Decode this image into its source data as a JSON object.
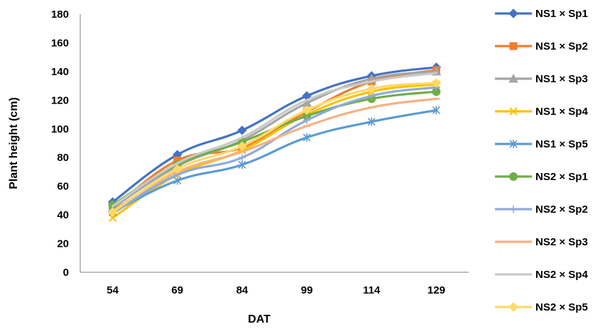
{
  "chart_data": {
    "type": "line",
    "title": "",
    "xlabel": "DAT",
    "ylabel": "Plant height (cm)",
    "categories": [
      "54",
      "69",
      "84",
      "99",
      "114",
      "129"
    ],
    "ylim": [
      0,
      180
    ],
    "yticks": [
      0,
      20,
      40,
      60,
      80,
      100,
      120,
      140,
      160,
      180
    ],
    "grid": false,
    "legend_position": "right",
    "series": [
      {
        "name": "NS1 × Sp1",
        "color": "#4472C4",
        "marker": "diamond",
        "values": [
          49,
          82,
          99,
          123,
          137,
          143
        ]
      },
      {
        "name": "NS1 × Sp2",
        "color": "#ED7D31",
        "marker": "square",
        "values": [
          44,
          78,
          87,
          112,
          133,
          141
        ]
      },
      {
        "name": "NS1 × Sp3",
        "color": "#A5A5A5",
        "marker": "triangle",
        "values": [
          45,
          74,
          92,
          118,
          135,
          140
        ]
      },
      {
        "name": "NS1 × Sp4",
        "color": "#FFC000",
        "marker": "x",
        "values": [
          38,
          68,
          85,
          110,
          126,
          131
        ]
      },
      {
        "name": "NS1 × Sp5",
        "color": "#5B9BD5",
        "marker": "star",
        "values": [
          42,
          64,
          75,
          94,
          105,
          113
        ]
      },
      {
        "name": "NS2 × Sp1",
        "color": "#70AD47",
        "marker": "circle",
        "values": [
          47,
          75,
          91,
          109,
          121,
          126
        ]
      },
      {
        "name": "NS2 × Sp2",
        "color": "#8FAADC",
        "marker": "plus",
        "values": [
          41,
          68,
          80,
          106,
          123,
          129
        ]
      },
      {
        "name": "NS2 × Sp3",
        "color": "#F4B183",
        "marker": "dash",
        "values": [
          43,
          70,
          84,
          102,
          115,
          121
        ]
      },
      {
        "name": "NS2 × Sp4",
        "color": "#C9C9C9",
        "marker": "none",
        "values": [
          46,
          76,
          94,
          120,
          133,
          139
        ]
      },
      {
        "name": "NS2 × Sp5",
        "color": "#FFD966",
        "marker": "diamond",
        "values": [
          42,
          72,
          88,
          113,
          128,
          132
        ]
      }
    ]
  }
}
